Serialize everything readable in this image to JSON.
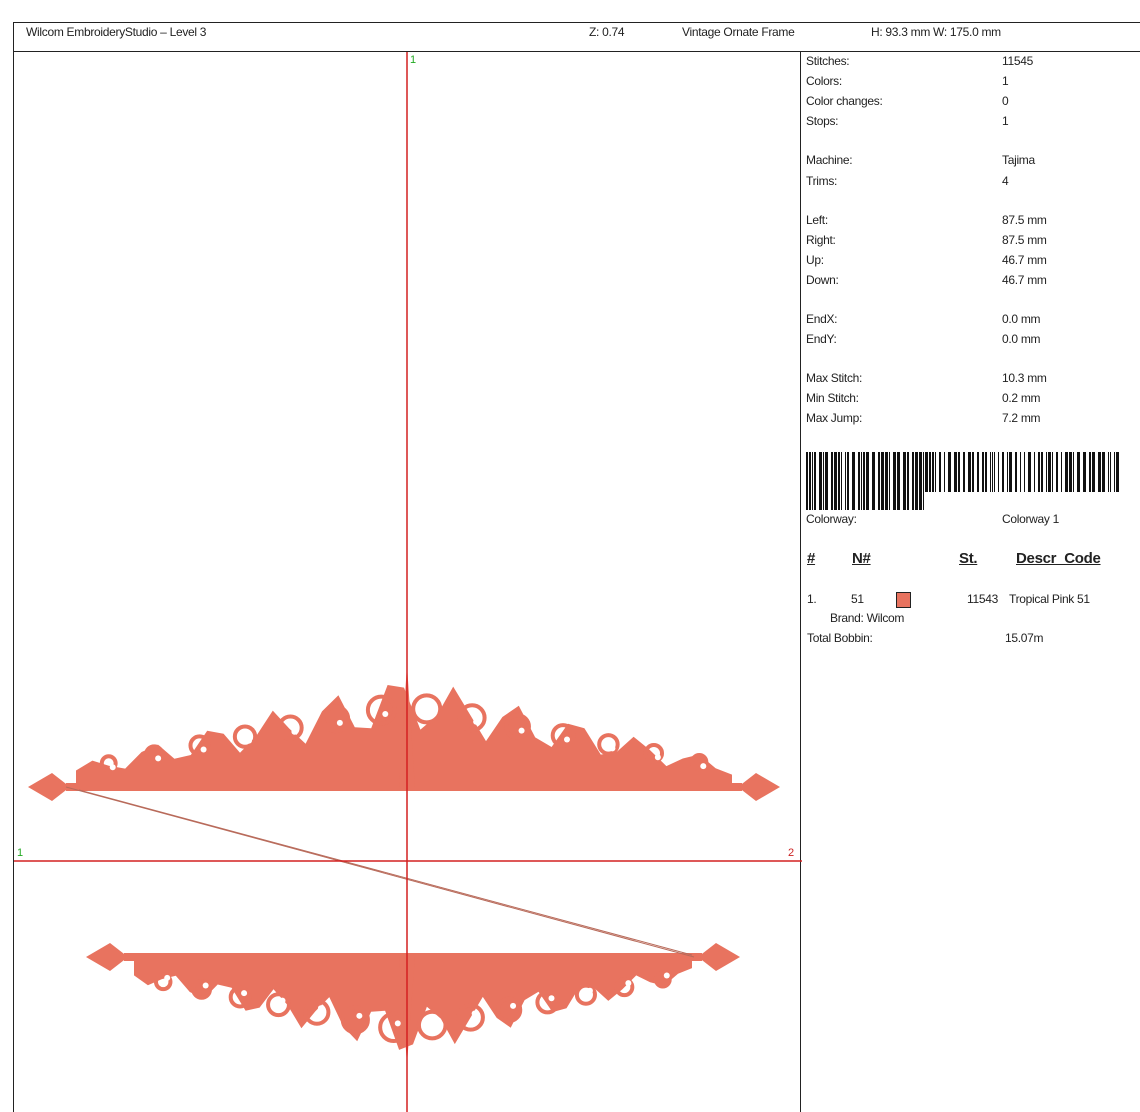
{
  "header": {
    "app_title": "Wilcom EmbroideryStudio – Level 3",
    "zoom": "Z: 0.74",
    "design_name": "Vintage Ornate Frame",
    "dimensions": "H: 93.3 mm  W: 175.0 mm"
  },
  "design_view": {
    "axis_labels": {
      "top": "1",
      "left": "1",
      "right": "2"
    },
    "thread_color": "#E8735F",
    "crosshair_color": "#D42020"
  },
  "info": {
    "rows": [
      {
        "label": "Stitches:",
        "value": "11545"
      },
      {
        "label": "Colors:",
        "value": "1"
      },
      {
        "label": "Color changes:",
        "value": "0"
      },
      {
        "label": "Stops:",
        "value": "1"
      },
      {
        "label": "Machine:",
        "value": "Tajima"
      },
      {
        "label": "Trims:",
        "value": "4"
      },
      {
        "label": "Left:",
        "value": "87.5 mm"
      },
      {
        "label": "Right:",
        "value": "87.5 mm"
      },
      {
        "label": "Up:",
        "value": "46.7 mm"
      },
      {
        "label": "Down:",
        "value": "46.7 mm"
      },
      {
        "label": "EndX:",
        "value": "0.0 mm"
      },
      {
        "label": "EndY:",
        "value": "0.0 mm"
      },
      {
        "label": "Max Stitch:",
        "value": "10.3 mm"
      },
      {
        "label": "Min Stitch:",
        "value": "0.2 mm"
      },
      {
        "label": "Max Jump:",
        "value": "7.2 mm"
      }
    ],
    "colorway_label": "Colorway:",
    "colorway_value": "Colorway 1"
  },
  "thread_table": {
    "headers": {
      "num": "#",
      "n": "N#",
      "st": "St.",
      "descr": "Descr_Code"
    },
    "rows": [
      {
        "index": "1.",
        "n": "51",
        "color": "#E8735F",
        "stitches": "11543",
        "descr": "Tropical Pink 51",
        "brand": "Brand: Wilcom"
      }
    ],
    "total_bobbin_label": "Total Bobbin:",
    "total_bobbin_value": "15.07m"
  }
}
